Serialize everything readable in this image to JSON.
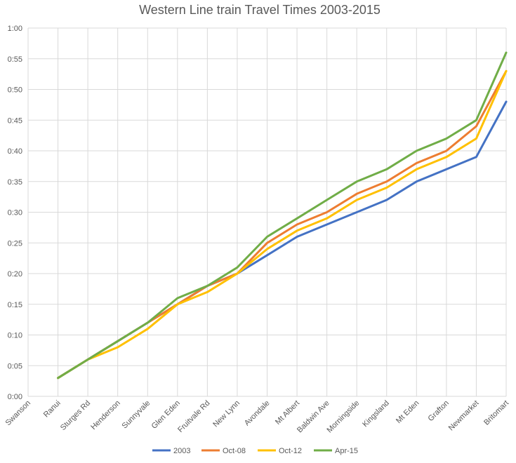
{
  "chart_data": {
    "type": "line",
    "title": "Western Line train Travel Times 2003-2015",
    "xlabel": "",
    "ylabel": "",
    "categories": [
      "Swanson",
      "Ranui",
      "Sturges Rd",
      "Henderson",
      "Sunnyvale",
      "Glen Eden",
      "Fruitvale Rd",
      "New Lynn",
      "Avondale",
      "Mt Albert",
      "Baldwin Ave",
      "Morningside",
      "Kingsland",
      "Mt Eden",
      "Grafton",
      "Newmarket",
      "Britomart"
    ],
    "y_ticks": [
      "0:00",
      "0:05",
      "0:10",
      "0:15",
      "0:20",
      "0:25",
      "0:30",
      "0:35",
      "0:40",
      "0:45",
      "0:50",
      "0:55",
      "1:00"
    ],
    "ylim": [
      0,
      60
    ],
    "y_unit": "minutes",
    "grid": true,
    "legend_position": "bottom",
    "series": [
      {
        "name": "2003",
        "color": "#4472c4",
        "values": [
          null,
          3,
          6,
          9,
          12,
          15,
          18,
          20,
          23,
          26,
          28,
          30,
          32,
          35,
          37,
          39,
          48
        ]
      },
      {
        "name": "Oct-08",
        "color": "#ed7d31",
        "values": [
          null,
          3,
          6,
          9,
          12,
          15,
          18,
          20,
          25,
          28,
          30,
          33,
          35,
          38,
          40,
          44,
          53
        ]
      },
      {
        "name": "Oct-12",
        "color": "#ffc000",
        "values": [
          null,
          3,
          6,
          8,
          11,
          15,
          17,
          20,
          24,
          27,
          29,
          32,
          34,
          37,
          39,
          42,
          53
        ]
      },
      {
        "name": "Apr-15",
        "color": "#70ad47",
        "values": [
          null,
          3,
          6,
          9,
          12,
          16,
          18,
          21,
          26,
          29,
          32,
          35,
          37,
          40,
          42,
          45,
          56
        ]
      }
    ]
  }
}
